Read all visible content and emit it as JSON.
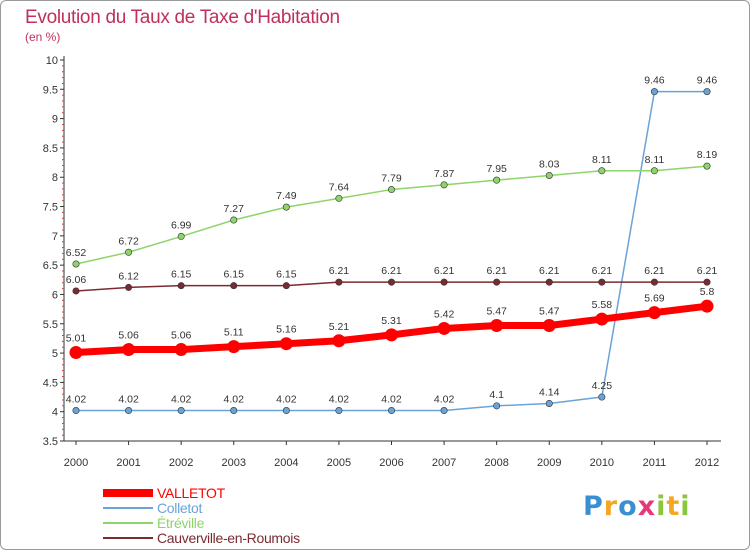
{
  "title": "Evolution du Taux de Taxe d'Habitation",
  "unit": "(en %)",
  "logo": [
    "P",
    "r",
    "o",
    "x",
    "i",
    "t",
    "i"
  ],
  "logo_colors": [
    "#3a8fd0",
    "#f5a623",
    "#3a8fd0",
    "#e5397a",
    "#8cc63f",
    "#f5a623",
    "#8cc63f"
  ],
  "chart_data": {
    "type": "line",
    "x": [
      "2000",
      "2001",
      "2002",
      "2003",
      "2004",
      "2005",
      "2006",
      "2007",
      "2008",
      "2009",
      "2010",
      "2011",
      "2012"
    ],
    "ylim": [
      3.5,
      10
    ],
    "yticks": [
      "3.5",
      "4",
      "4.5",
      "5",
      "5.5",
      "6",
      "6.5",
      "7",
      "7.5",
      "8",
      "8.5",
      "9",
      "9.5",
      "10"
    ],
    "grid": false,
    "legend_position": "bottom-left",
    "series": [
      {
        "name": "VALLETOT",
        "color": "#ff0000",
        "values": [
          5.01,
          5.06,
          5.06,
          5.11,
          5.16,
          5.21,
          5.31,
          5.42,
          5.47,
          5.47,
          5.58,
          5.69,
          5.8
        ],
        "labels": [
          "5.01",
          "5.06",
          "5.06",
          "5.11",
          "5.16",
          "5.21",
          "5.31",
          "5.42",
          "5.47",
          "5.47",
          "5.58",
          "5.69",
          "5.8"
        ]
      },
      {
        "name": "Colletot",
        "color": "#6aa3d8",
        "values": [
          4.02,
          4.02,
          4.02,
          4.02,
          4.02,
          4.02,
          4.02,
          4.02,
          4.1,
          4.14,
          4.25,
          9.46,
          9.46
        ],
        "labels": [
          "4.02",
          "4.02",
          "4.02",
          "4.02",
          "4.02",
          "4.02",
          "4.02",
          "4.02",
          "4.1",
          "4.14",
          "4.25",
          "9.46",
          "9.46"
        ]
      },
      {
        "name": "Étréville",
        "color": "#8fd46a",
        "values": [
          6.52,
          6.72,
          6.99,
          7.27,
          7.49,
          7.64,
          7.79,
          7.87,
          7.95,
          8.03,
          8.11,
          8.11,
          8.19
        ],
        "labels": [
          "6.52",
          "6.72",
          "6.99",
          "7.27",
          "7.49",
          "7.64",
          "7.79",
          "7.87",
          "7.95",
          "8.03",
          "8.11",
          "8.11",
          "8.19"
        ]
      },
      {
        "name": "Cauverville-en-Roumois",
        "color": "#7a2a30",
        "values": [
          6.06,
          6.12,
          6.15,
          6.15,
          6.15,
          6.21,
          6.21,
          6.21,
          6.21,
          6.21,
          6.21,
          6.21,
          6.21
        ],
        "labels": [
          "6.06",
          "6.12",
          "6.15",
          "6.15",
          "6.15",
          "6.21",
          "6.21",
          "6.21",
          "6.21",
          "6.21",
          "6.21",
          "6.21",
          "6.21"
        ]
      }
    ]
  }
}
